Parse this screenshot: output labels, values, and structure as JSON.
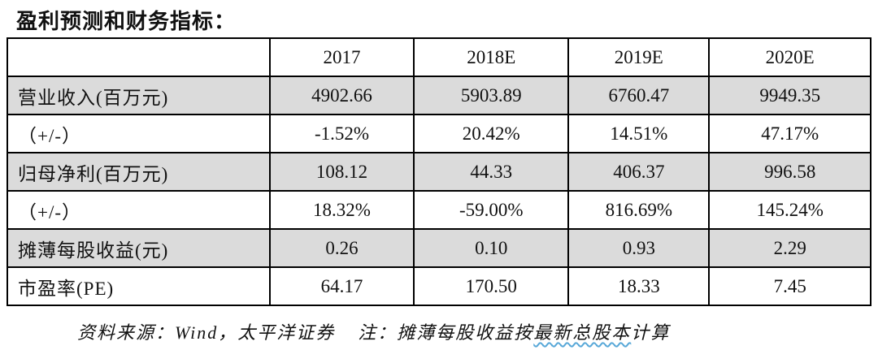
{
  "title": "盈利预测和财务指标：",
  "table": {
    "columns": [
      "",
      "2017",
      "2018E",
      "2019E",
      "2020E"
    ],
    "rows": [
      {
        "label": "营业收入(百万元)",
        "values": [
          "4902.66",
          "5903.89",
          "6760.47",
          "9949.35"
        ],
        "shaded": true
      },
      {
        "label": "（+/-）",
        "values": [
          "-1.52%",
          "20.42%",
          "14.51%",
          "47.17%"
        ],
        "shaded": false
      },
      {
        "label": "归母净利(百万元)",
        "values": [
          "108.12",
          "44.33",
          "406.37",
          "996.58"
        ],
        "shaded": true
      },
      {
        "label": "（+/-）",
        "values": [
          "18.32%",
          "-59.00%",
          "816.69%",
          "145.24%"
        ],
        "shaded": false
      },
      {
        "label": "摊薄每股收益(元)",
        "values": [
          "0.26",
          "0.10",
          "0.93",
          "2.29"
        ],
        "shaded": true
      },
      {
        "label": "市盈率(PE)",
        "values": [
          "64.17",
          "170.50",
          "18.33",
          "7.45"
        ],
        "shaded": false
      }
    ]
  },
  "footer": {
    "source": "资料来源：Wind，太平洋证券",
    "note_prefix": "注：摊薄每股收益按",
    "note_underlined": "最新总股本",
    "note_suffix": "计算"
  },
  "colors": {
    "shaded_row": "#dbdbdb",
    "border": "#000000",
    "note_underline": "#58a8d8"
  }
}
